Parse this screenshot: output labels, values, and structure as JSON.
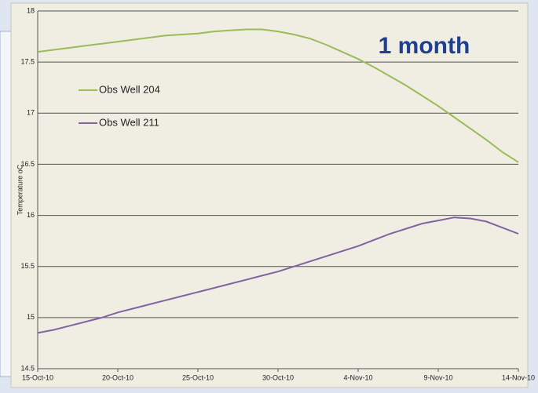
{
  "chart_data": {
    "type": "line",
    "annotation": "1 month",
    "ylabel": "Temperature oC",
    "x": [
      "2010-10-15",
      "2010-10-16",
      "2010-10-17",
      "2010-10-18",
      "2010-10-19",
      "2010-10-20",
      "2010-10-21",
      "2010-10-22",
      "2010-10-23",
      "2010-10-24",
      "2010-10-25",
      "2010-10-26",
      "2010-10-27",
      "2010-10-28",
      "2010-10-29",
      "2010-10-30",
      "2010-10-31",
      "2010-11-01",
      "2010-11-02",
      "2010-11-03",
      "2010-11-04",
      "2010-11-05",
      "2010-11-06",
      "2010-11-07",
      "2010-11-08",
      "2010-11-09",
      "2010-11-10",
      "2010-11-11",
      "2010-11-12",
      "2010-11-13",
      "2010-11-14"
    ],
    "series": [
      {
        "name": "Obs Well 204",
        "color": "#9bbb59",
        "values": [
          17.6,
          17.62,
          17.64,
          17.66,
          17.68,
          17.7,
          17.72,
          17.74,
          17.76,
          17.77,
          17.78,
          17.8,
          17.81,
          17.82,
          17.82,
          17.8,
          17.77,
          17.73,
          17.67,
          17.6,
          17.53,
          17.45,
          17.36,
          17.27,
          17.17,
          17.07,
          16.96,
          16.85,
          16.74,
          16.62,
          16.52
        ]
      },
      {
        "name": "Obs Well 211",
        "color": "#8064a2",
        "values": [
          14.85,
          14.88,
          14.92,
          14.96,
          15.0,
          15.05,
          15.09,
          15.13,
          15.17,
          15.21,
          15.25,
          15.29,
          15.33,
          15.37,
          15.41,
          15.45,
          15.5,
          15.55,
          15.6,
          15.65,
          15.7,
          15.76,
          15.82,
          15.87,
          15.92,
          15.95,
          15.98,
          15.97,
          15.94,
          15.88,
          15.82
        ]
      }
    ],
    "xlim": [
      "2010-10-15",
      "2010-11-14"
    ],
    "xticks": [
      {
        "value": "2010-10-15",
        "label": "15-Oct-10"
      },
      {
        "value": "2010-10-20",
        "label": "20-Oct-10"
      },
      {
        "value": "2010-10-25",
        "label": "25-Oct-10"
      },
      {
        "value": "2010-10-30",
        "label": "30-Oct-10"
      },
      {
        "value": "2010-11-04",
        "label": "4-Nov-10"
      },
      {
        "value": "2010-11-09",
        "label": "9-Nov-10"
      },
      {
        "value": "2010-11-14",
        "label": "14-Nov-10"
      }
    ],
    "ylim": [
      14.5,
      18
    ],
    "yticks": [
      14.5,
      15,
      15.5,
      16,
      16.5,
      17,
      17.5,
      18
    ],
    "grid": true
  }
}
